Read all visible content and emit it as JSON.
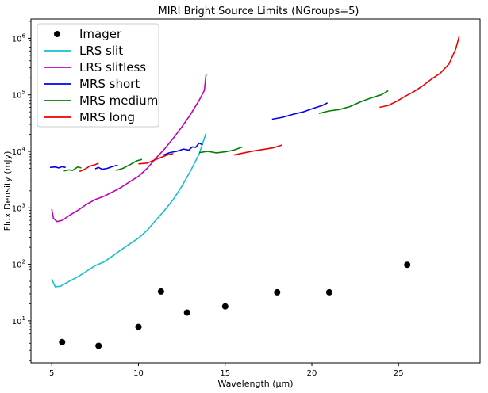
{
  "chart_data": {
    "type": "line",
    "title": "MIRI Bright Source Limits (NGroups=5)",
    "xlabel": "Wavelength (μm)",
    "ylabel": "Flux Density (mJy)",
    "xlim": [
      3.8,
      29.7
    ],
    "ylim": [
      1.8,
      2200000
    ],
    "yscale": "log",
    "grid": false,
    "legend_position": "top-left",
    "x_ticks": [
      {
        "value": 5,
        "label": "5"
      },
      {
        "value": 10,
        "label": "10"
      },
      {
        "value": 15,
        "label": "15"
      },
      {
        "value": 20,
        "label": "20"
      },
      {
        "value": 25,
        "label": "25"
      }
    ],
    "y_ticks": [
      {
        "value": 10,
        "base": "10",
        "exp": "1"
      },
      {
        "value": 100,
        "base": "10",
        "exp": "2"
      },
      {
        "value": 1000,
        "base": "10",
        "exp": "3"
      },
      {
        "value": 10000,
        "base": "10",
        "exp": "4"
      },
      {
        "value": 100000,
        "base": "10",
        "exp": "5"
      },
      {
        "value": 1000000,
        "base": "10",
        "exp": "6"
      }
    ],
    "series": [
      {
        "name": "Imager",
        "kind": "scatter",
        "color": "#000000",
        "points": [
          [
            5.6,
            4.2
          ],
          [
            7.7,
            3.6
          ],
          [
            10.0,
            7.8
          ],
          [
            11.3,
            33
          ],
          [
            12.8,
            14
          ],
          [
            15.0,
            18
          ],
          [
            18.0,
            32
          ],
          [
            21.0,
            32
          ],
          [
            25.5,
            98
          ]
        ]
      },
      {
        "name": "LRS slit",
        "kind": "line",
        "color": "#17becf",
        "segments": [
          [
            [
              5.0,
              55
            ],
            [
              5.2,
              40
            ],
            [
              5.5,
              41
            ],
            [
              6.0,
              50
            ],
            [
              6.5,
              60
            ],
            [
              7.0,
              75
            ],
            [
              7.5,
              95
            ],
            [
              8.0,
              110
            ],
            [
              8.5,
              140
            ],
            [
              9.0,
              180
            ],
            [
              9.5,
              230
            ],
            [
              10.0,
              290
            ],
            [
              10.5,
              400
            ],
            [
              11.0,
              600
            ],
            [
              11.5,
              900
            ],
            [
              12.0,
              1400
            ],
            [
              12.5,
              2400
            ],
            [
              13.0,
              4500
            ],
            [
              13.5,
              9000
            ],
            [
              13.9,
              21000
            ]
          ]
        ]
      },
      {
        "name": "LRS slitless",
        "kind": "line",
        "color": "#bf00bf",
        "segments": [
          [
            [
              5.0,
              950
            ],
            [
              5.1,
              650
            ],
            [
              5.3,
              570
            ],
            [
              5.6,
              600
            ],
            [
              6.0,
              730
            ],
            [
              6.5,
              900
            ],
            [
              7.0,
              1150
            ],
            [
              7.5,
              1400
            ],
            [
              8.0,
              1600
            ],
            [
              8.5,
              1900
            ],
            [
              9.0,
              2300
            ],
            [
              9.5,
              2900
            ],
            [
              10.0,
              3600
            ],
            [
              10.5,
              5000
            ],
            [
              11.0,
              7500
            ],
            [
              11.5,
              11000
            ],
            [
              12.0,
              17000
            ],
            [
              12.5,
              27000
            ],
            [
              13.0,
              45000
            ],
            [
              13.5,
              80000
            ],
            [
              13.8,
              120000
            ],
            [
              13.9,
              230000
            ]
          ]
        ]
      },
      {
        "name": "MRS short",
        "kind": "line",
        "color": "#0000ee",
        "segments": [
          [
            [
              4.9,
              5200
            ],
            [
              5.2,
              5300
            ],
            [
              5.4,
              5100
            ],
            [
              5.6,
              5350
            ],
            [
              5.8,
              5200
            ]
          ],
          [
            [
              7.5,
              4900
            ],
            [
              7.7,
              5200
            ],
            [
              7.9,
              4800
            ],
            [
              8.2,
              5000
            ],
            [
              8.5,
              5400
            ],
            [
              8.8,
              5700
            ]
          ],
          [
            [
              11.4,
              8500
            ],
            [
              11.8,
              9500
            ],
            [
              12.2,
              10000
            ],
            [
              12.6,
              11000
            ],
            [
              12.9,
              10500
            ],
            [
              13.1,
              12000
            ],
            [
              13.3,
              11800
            ],
            [
              13.5,
              14000
            ],
            [
              13.7,
              13000
            ]
          ],
          [
            [
              17.7,
              37000
            ],
            [
              18.3,
              40000
            ],
            [
              18.9,
              45000
            ],
            [
              19.5,
              50000
            ],
            [
              20.1,
              58000
            ],
            [
              20.6,
              65000
            ],
            [
              20.9,
              72000
            ]
          ]
        ]
      },
      {
        "name": "MRS medium",
        "kind": "line",
        "color": "#008000",
        "segments": [
          [
            [
              5.7,
              4500
            ],
            [
              6.0,
              4700
            ],
            [
              6.2,
              4600
            ],
            [
              6.5,
              5300
            ],
            [
              6.7,
              5100
            ]
          ],
          [
            [
              8.7,
              4600
            ],
            [
              9.1,
              5000
            ],
            [
              9.5,
              5800
            ],
            [
              9.9,
              6800
            ],
            [
              10.2,
              7200
            ]
          ],
          [
            [
              13.5,
              9500
            ],
            [
              14.0,
              10000
            ],
            [
              14.5,
              9400
            ],
            [
              15.0,
              9800
            ],
            [
              15.5,
              10500
            ],
            [
              16.0,
              12000
            ]
          ],
          [
            [
              20.4,
              47000
            ],
            [
              21.0,
              52000
            ],
            [
              21.6,
              55000
            ],
            [
              22.2,
              62000
            ],
            [
              22.8,
              75000
            ],
            [
              23.4,
              88000
            ],
            [
              24.0,
              100000
            ],
            [
              24.4,
              118000
            ]
          ]
        ]
      },
      {
        "name": "MRS long",
        "kind": "line",
        "color": "#ee0000",
        "segments": [
          [
            [
              6.6,
              4400
            ],
            [
              6.9,
              4800
            ],
            [
              7.2,
              5500
            ],
            [
              7.5,
              5800
            ],
            [
              7.7,
              6200
            ]
          ],
          [
            [
              10.0,
              6000
            ],
            [
              10.5,
              6200
            ],
            [
              10.9,
              7000
            ],
            [
              11.3,
              7800
            ],
            [
              11.7,
              8700
            ],
            [
              12.0,
              9100
            ]
          ],
          [
            [
              15.5,
              8600
            ],
            [
              16.0,
              9300
            ],
            [
              16.6,
              10100
            ],
            [
              17.2,
              10800
            ],
            [
              17.8,
              11600
            ],
            [
              18.3,
              13000
            ]
          ],
          [
            [
              23.9,
              60000
            ],
            [
              24.4,
              65000
            ],
            [
              24.9,
              77000
            ],
            [
              25.4,
              95000
            ],
            [
              25.9,
              115000
            ],
            [
              26.4,
              145000
            ],
            [
              26.9,
              190000
            ],
            [
              27.4,
              240000
            ],
            [
              27.9,
              350000
            ],
            [
              28.3,
              650000
            ],
            [
              28.5,
              1100000
            ]
          ]
        ]
      }
    ]
  }
}
